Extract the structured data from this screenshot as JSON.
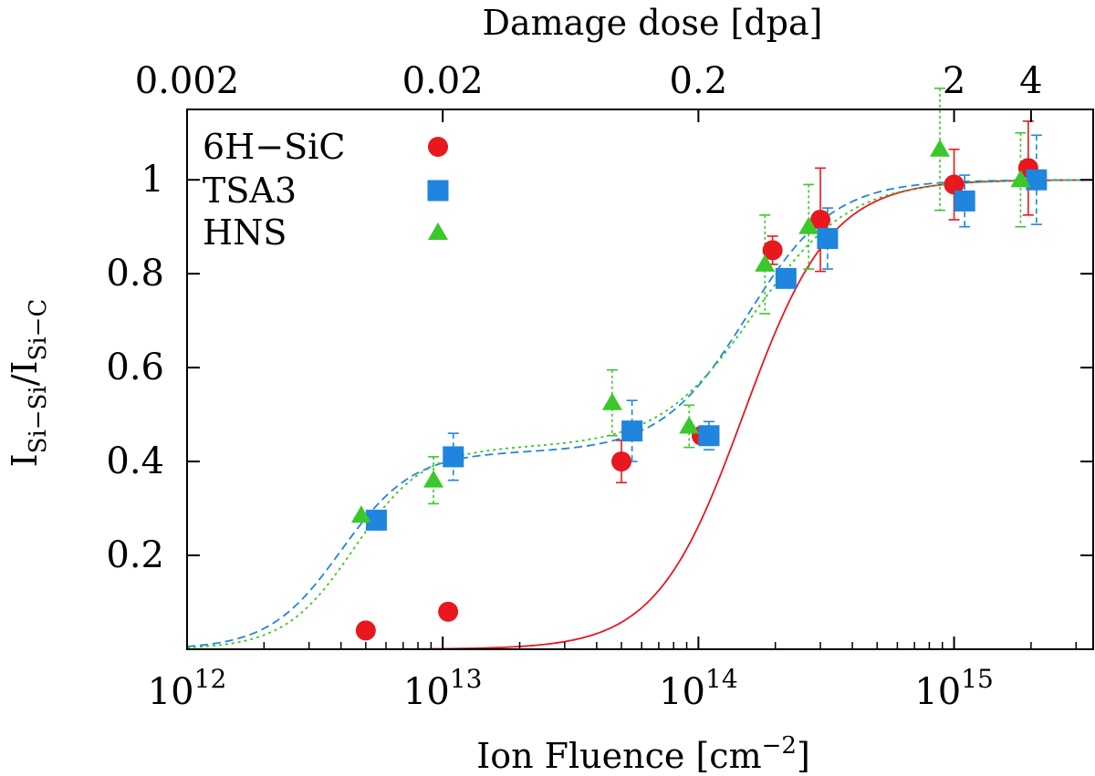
{
  "chart_data": {
    "type": "scatter",
    "title": "",
    "xlabel": "Ion Fluence [cm",
    "xlabel_sup": "−2",
    "xlabel_end": "]",
    "ylabel_parts": [
      "I",
      "Si−Si",
      "/I",
      "Si−C"
    ],
    "x2label": "Damage dose [dpa]",
    "xscale": "log",
    "xlim": [
      1000000000000.0,
      3500000000000000.0
    ],
    "ylim": [
      0,
      1.15
    ],
    "grid": false,
    "legend": "top-left",
    "x_ticks": [
      {
        "value": 1000000000000.0,
        "base": "10",
        "exp": "12"
      },
      {
        "value": 10000000000000.0,
        "base": "10",
        "exp": "13"
      },
      {
        "value": 100000000000000.0,
        "base": "10",
        "exp": "14"
      },
      {
        "value": 1000000000000000.0,
        "base": "10",
        "exp": "15"
      }
    ],
    "y_ticks": [
      {
        "value": 0.2,
        "label": "0.2"
      },
      {
        "value": 0.4,
        "label": "0.4"
      },
      {
        "value": 0.6,
        "label": "0.6"
      },
      {
        "value": 0.8,
        "label": "0.8"
      },
      {
        "value": 1.0,
        "label": "1"
      }
    ],
    "x2_ticks": [
      {
        "value": 1000000000000.0,
        "label": "0.002"
      },
      {
        "value": 10000000000000.0,
        "label": "0.02"
      },
      {
        "value": 100000000000000.0,
        "label": "0.2"
      },
      {
        "value": 1000000000000000.0,
        "label": "2"
      },
      {
        "value": 2000000000000000.0,
        "label": "4"
      }
    ],
    "series": [
      {
        "name": "6H−SiC",
        "marker": "circle",
        "color": "#e8181e",
        "line_style": "solid",
        "points": [
          {
            "x": 5000000000000.0,
            "y": 0.04
          },
          {
            "x": 10500000000000.0,
            "y": 0.08
          },
          {
            "x": 50000000000000.0,
            "y": 0.4,
            "err": 0.045
          },
          {
            "x": 103000000000000.0,
            "y": 0.455
          },
          {
            "x": 195000000000000.0,
            "y": 0.85,
            "err": 0.03
          },
          {
            "x": 300000000000000.0,
            "y": 0.915,
            "err": 0.11
          },
          {
            "x": 1000000000000000.0,
            "y": 0.99,
            "err": 0.075
          },
          {
            "x": 1950000000000000.0,
            "y": 1.025,
            "err": 0.1
          }
        ],
        "fit": {
          "kind": "sigmoid",
          "a1": 0,
          "x1": 50000000000000.0,
          "w1": 1.5,
          "a2": 1.0,
          "x2": 150000000000000.0,
          "w2": 0.75
        }
      },
      {
        "name": "TSA3",
        "marker": "square",
        "color": "#1f85de",
        "line_style": "dashed",
        "points": [
          {
            "x": 5500000000000.0,
            "y": 0.275
          },
          {
            "x": 11000000000000.0,
            "y": 0.41,
            "err": 0.05
          },
          {
            "x": 55000000000000.0,
            "y": 0.465,
            "err": 0.065
          },
          {
            "x": 110000000000000.0,
            "y": 0.455,
            "err": 0.03
          },
          {
            "x": 220000000000000.0,
            "y": 0.79
          },
          {
            "x": 320000000000000.0,
            "y": 0.875,
            "err": 0.065
          },
          {
            "x": 1100000000000000.0,
            "y": 0.955,
            "err": 0.055
          },
          {
            "x": 2100000000000000.0,
            "y": 1.0,
            "err": 0.095
          }
        ],
        "fit": {
          "kind": "two-step",
          "a1": 0.42,
          "x1": 4000000000000.0,
          "w1": 0.62,
          "a2": 0.58,
          "x2": 155000000000000.0,
          "w2": 0.74
        }
      },
      {
        "name": "HNS",
        "marker": "triangle",
        "color": "#3ac82a",
        "line_style": "dotted",
        "points": [
          {
            "x": 4800000000000.0,
            "y": 0.285
          },
          {
            "x": 9200000000000.0,
            "y": 0.36,
            "err": 0.05
          },
          {
            "x": 46000000000000.0,
            "y": 0.525,
            "err": 0.07
          },
          {
            "x": 92000000000000.0,
            "y": 0.475,
            "err": 0.045
          },
          {
            "x": 182000000000000.0,
            "y": 0.82,
            "err": 0.105
          },
          {
            "x": 270000000000000.0,
            "y": 0.9,
            "err": 0.09
          },
          {
            "x": 880000000000000.0,
            "y": 1.065,
            "err": 0.13
          },
          {
            "x": 1820000000000000.0,
            "y": 1.0,
            "err": 0.1
          }
        ],
        "fit": {
          "kind": "two-step",
          "a1": 0.43,
          "x1": 4500000000000.0,
          "w1": 0.6,
          "a2": 0.57,
          "x2": 165000000000000.0,
          "w2": 0.82
        }
      }
    ]
  }
}
